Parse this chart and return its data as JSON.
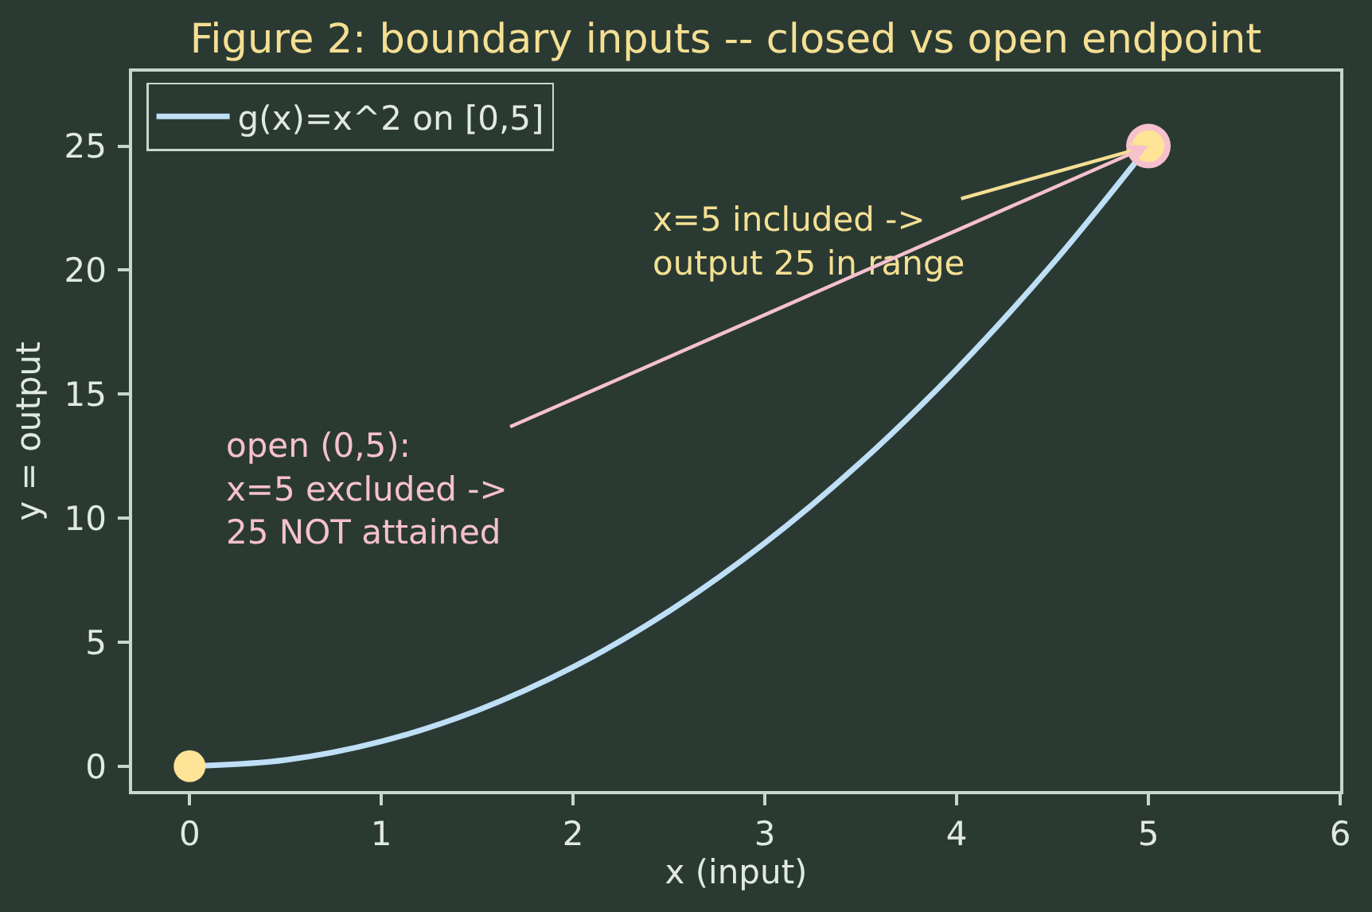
{
  "chart_data": {
    "type": "line",
    "title": "Figure 2: boundary inputs -- closed vs open endpoint",
    "xlabel": "x (input)",
    "ylabel": "y = output",
    "series": [
      {
        "name": "g(x)=x^2 on [0,5]",
        "color": "#bfdff7",
        "x": [
          0,
          0.5,
          1,
          1.5,
          2,
          2.5,
          3,
          3.5,
          4,
          4.5,
          5
        ],
        "values": [
          0,
          0.25,
          1,
          2.25,
          4,
          6.25,
          9,
          12.25,
          16,
          20.25,
          25
        ]
      },
      {
        "type": "scatter",
        "marker": "circle",
        "color": "#f6c1cc",
        "x": [
          5
        ],
        "values": [
          25
        ]
      },
      {
        "type": "scatter",
        "marker": "circle",
        "color": "#ffe397",
        "x": [
          0,
          5
        ],
        "values": [
          0,
          25
        ]
      }
    ],
    "annotations": [
      {
        "text": "x=5 included ->\noutput 25 in range",
        "x": 5,
        "y": 25
      },
      {
        "text": "open (0,5):\nx=5 excluded ->\n25 NOT attained",
        "x": 5,
        "y": 25
      }
    ],
    "xlim": [
      -0.3,
      6
    ],
    "xticks": [
      0,
      1,
      2,
      3,
      4,
      5,
      6
    ],
    "ylim": [
      -1,
      28
    ],
    "yticks": [
      0,
      5,
      10,
      15,
      20,
      25
    ],
    "grid": false,
    "legend": "top left"
  }
}
